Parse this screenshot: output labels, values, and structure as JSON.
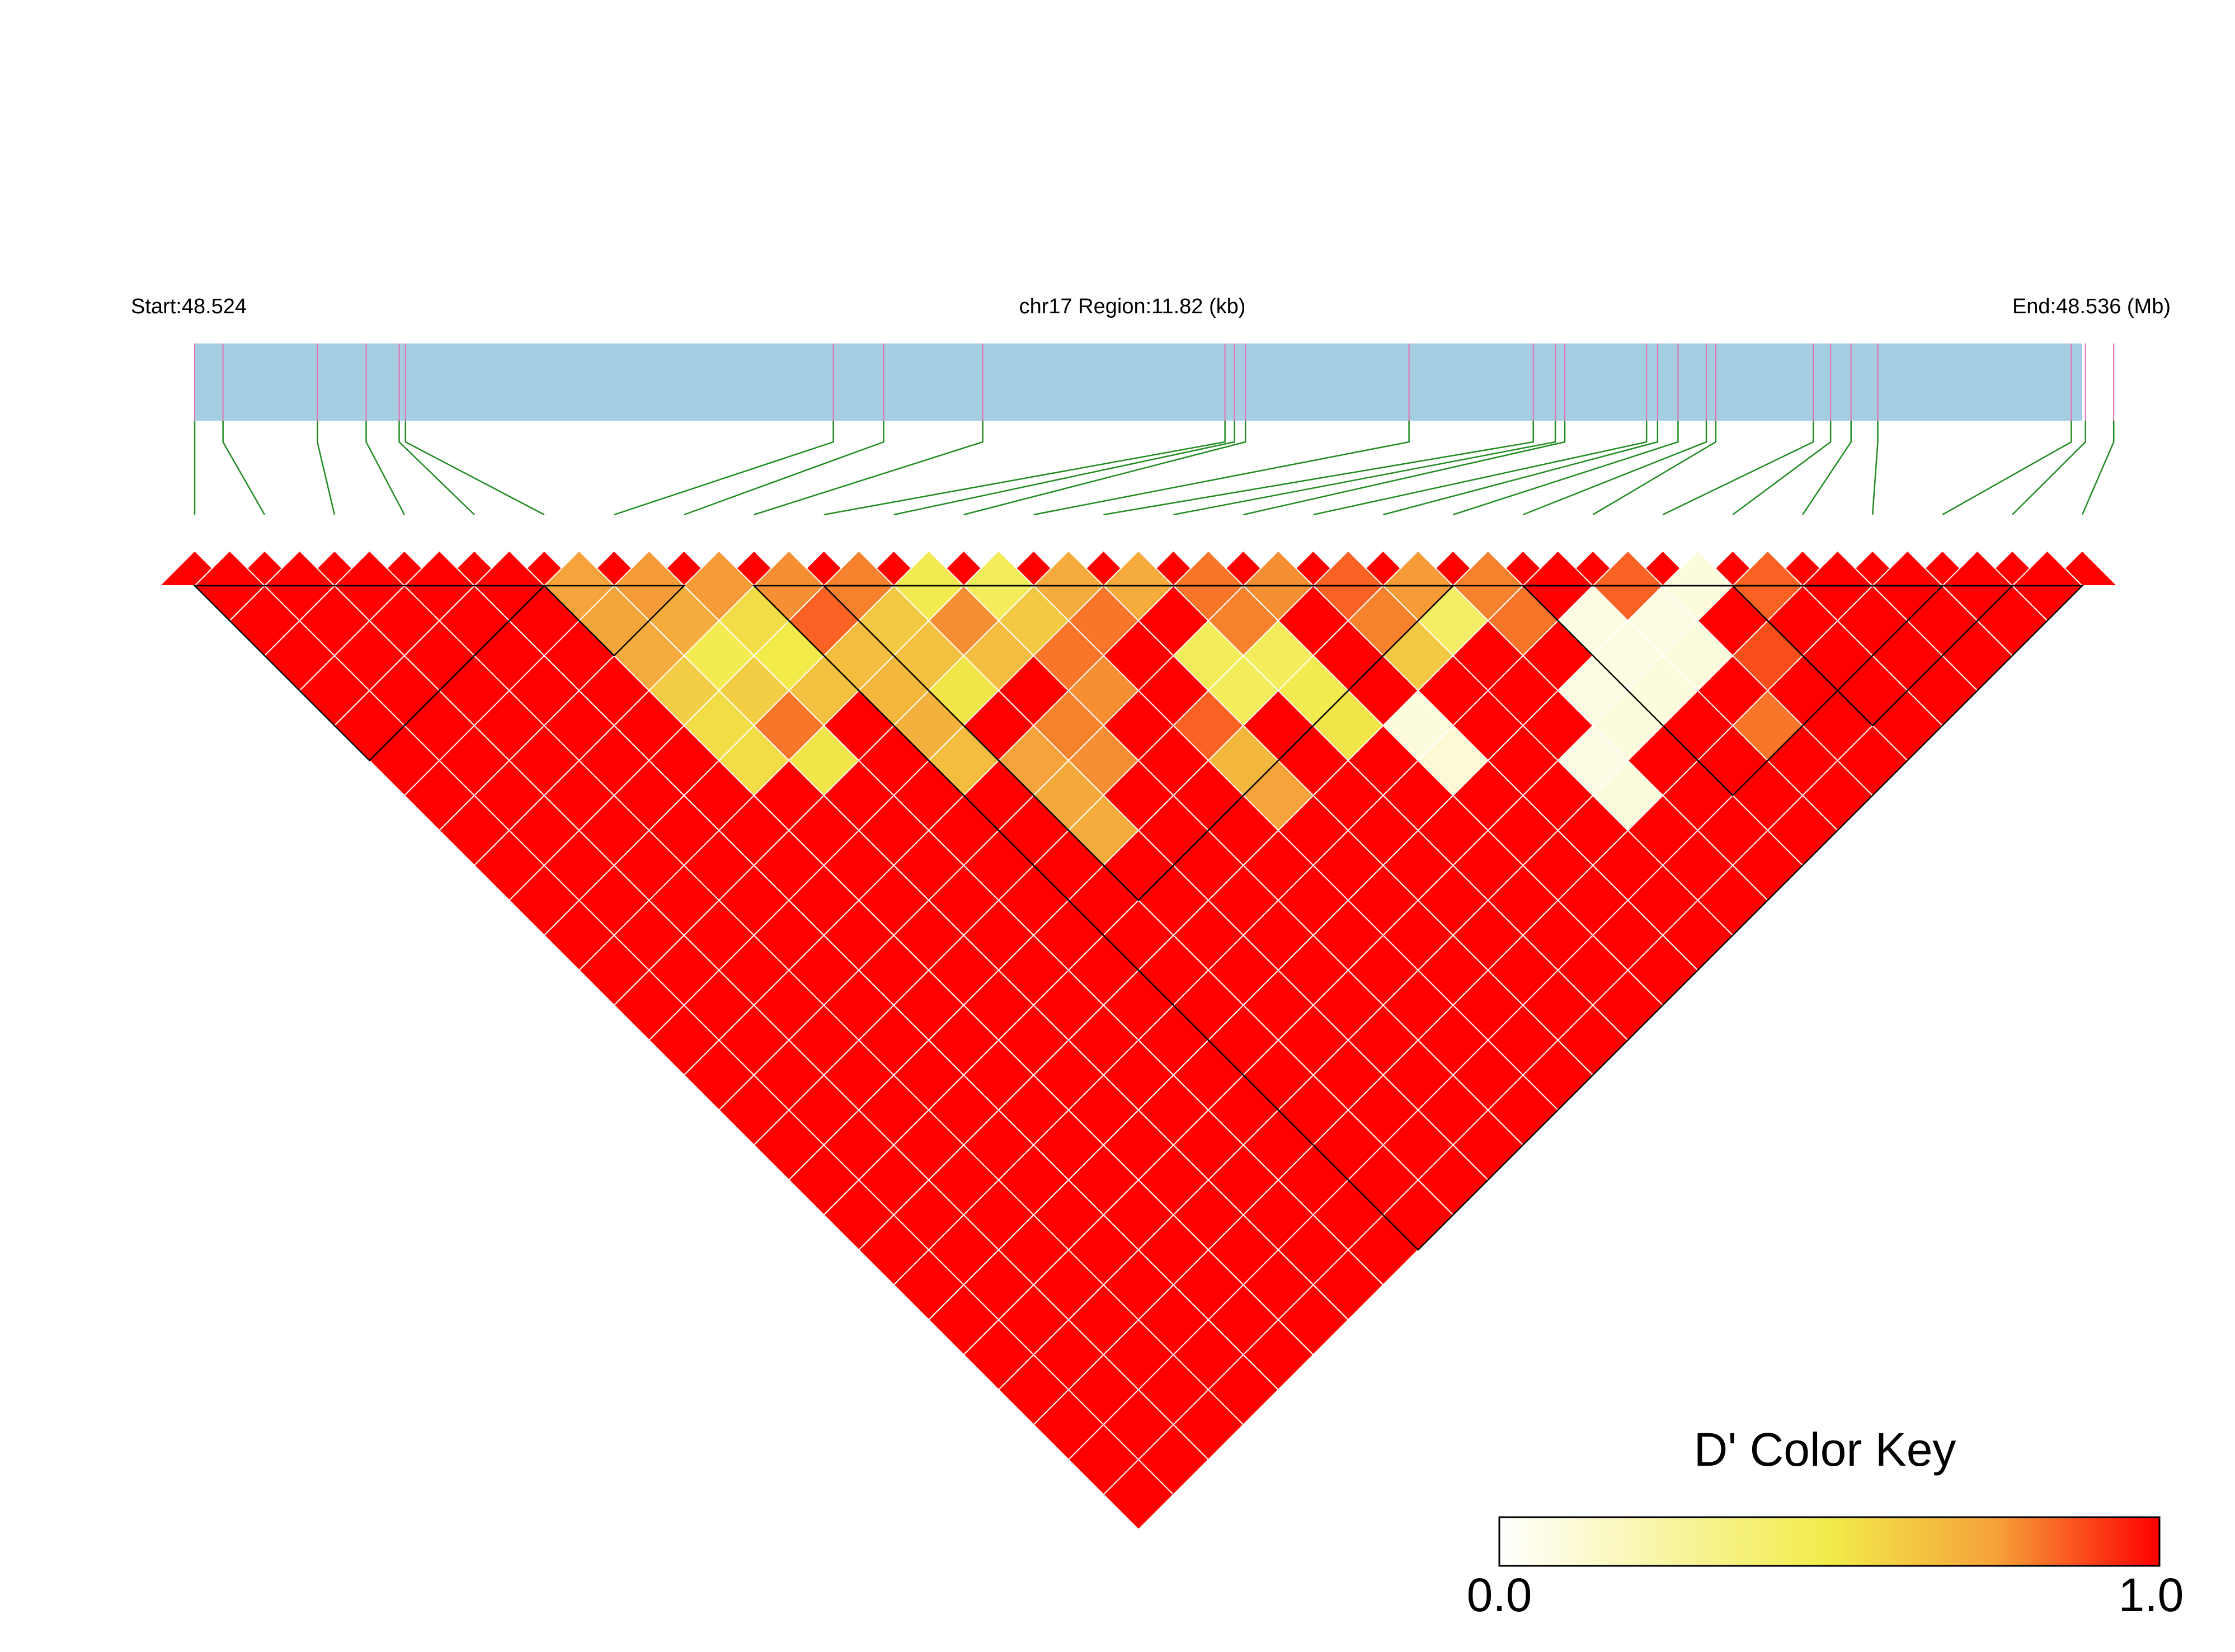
{
  "header": {
    "start_label": "Start:48.524",
    "region_label": "chr17 Region:11.82 (kb)",
    "end_label": "End:48.536 (Mb)"
  },
  "legend": {
    "title": "D' Color Key",
    "min_label": "0.0",
    "max_label": "1.0",
    "gradient_colors": [
      "#ffffff",
      "#f2eb4a",
      "#f5a33a",
      "#ff0000"
    ]
  },
  "colors": {
    "region_bar": "#a6cee3",
    "snp_tick": "#e36fb4",
    "connector": "#228b22",
    "cell_border": "#ffffff",
    "block_outline": "#000000"
  },
  "chart_data": {
    "type": "heatmap",
    "description_scale": "D' (0.0 to 1.0)",
    "region_mb": [
      48.524,
      48.536
    ],
    "n_snps": 28,
    "snp_positions_mb": [
      48.524,
      48.52418,
      48.52478,
      48.52509,
      48.5253,
      48.52534,
      48.52806,
      48.52838,
      48.52901,
      48.53055,
      48.53061,
      48.53068,
      48.53172,
      48.53251,
      48.53265,
      48.53271,
      48.53323,
      48.5333,
      48.53343,
      48.53361,
      48.53367,
      48.53429,
      48.5344,
      48.53453,
      48.5347,
      48.53593,
      48.53602,
      48.5362
    ],
    "default_dprime": 1.0,
    "dprime_exceptions": [
      {
        "i": 5,
        "j": 6,
        "d": 0.75
      },
      {
        "i": 5,
        "j": 7,
        "d": 0.74
      },
      {
        "i": 5,
        "j": 8,
        "d": 0.72
      },
      {
        "i": 5,
        "j": 9,
        "d": 0.6
      },
      {
        "i": 5,
        "j": 10,
        "d": 0.55
      },
      {
        "i": 5,
        "j": 11,
        "d": 0.55
      },
      {
        "i": 6,
        "j": 7,
        "d": 0.76
      },
      {
        "i": 6,
        "j": 8,
        "d": 0.72
      },
      {
        "i": 6,
        "j": 9,
        "d": 0.48
      },
      {
        "i": 6,
        "j": 10,
        "d": 0.6
      },
      {
        "i": 6,
        "j": 11,
        "d": 0.82
      },
      {
        "i": 6,
        "j": 12,
        "d": 0.52
      },
      {
        "i": 7,
        "j": 8,
        "d": 0.76
      },
      {
        "i": 7,
        "j": 9,
        "d": 0.55
      },
      {
        "i": 7,
        "j": 10,
        "d": 0.5
      },
      {
        "i": 7,
        "j": 11,
        "d": 0.65
      },
      {
        "i": 8,
        "j": 9,
        "d": 0.78
      },
      {
        "i": 8,
        "j": 10,
        "d": 0.85
      },
      {
        "i": 8,
        "j": 11,
        "d": 0.66
      },
      {
        "i": 8,
        "j": 12,
        "d": 0.68
      },
      {
        "i": 8,
        "j": 13,
        "d": 0.7
      },
      {
        "i": 8,
        "j": 14,
        "d": 0.66
      },
      {
        "i": 9,
        "j": 10,
        "d": 0.8
      },
      {
        "i": 9,
        "j": 11,
        "d": 0.62
      },
      {
        "i": 9,
        "j": 12,
        "d": 0.65
      },
      {
        "i": 9,
        "j": 13,
        "d": 0.52
      },
      {
        "i": 9,
        "j": 15,
        "d": 0.75
      },
      {
        "i": 9,
        "j": 16,
        "d": 0.73
      },
      {
        "i": 9,
        "j": 17,
        "d": 0.72
      },
      {
        "i": 10,
        "j": 11,
        "d": 0.48
      },
      {
        "i": 10,
        "j": 12,
        "d": 0.78
      },
      {
        "i": 10,
        "j": 13,
        "d": 0.66
      },
      {
        "i": 10,
        "j": 15,
        "d": 0.8
      },
      {
        "i": 10,
        "j": 16,
        "d": 0.78
      },
      {
        "i": 11,
        "j": 12,
        "d": 0.45
      },
      {
        "i": 11,
        "j": 13,
        "d": 0.62
      },
      {
        "i": 11,
        "j": 14,
        "d": 0.82
      },
      {
        "i": 11,
        "j": 15,
        "d": 0.78
      },
      {
        "i": 12,
        "j": 13,
        "d": 0.72
      },
      {
        "i": 12,
        "j": 14,
        "d": 0.82
      },
      {
        "i": 12,
        "j": 17,
        "d": 0.85
      },
      {
        "i": 12,
        "j": 18,
        "d": 0.68
      },
      {
        "i": 12,
        "j": 19,
        "d": 0.75
      },
      {
        "i": 13,
        "j": 14,
        "d": 0.72
      },
      {
        "i": 13,
        "j": 16,
        "d": 0.45
      },
      {
        "i": 13,
        "j": 17,
        "d": 0.45
      },
      {
        "i": 14,
        "j": 15,
        "d": 0.82
      },
      {
        "i": 14,
        "j": 16,
        "d": 0.8
      },
      {
        "i": 14,
        "j": 17,
        "d": 0.45
      },
      {
        "i": 14,
        "j": 18,
        "d": 0.48
      },
      {
        "i": 14,
        "j": 19,
        "d": 0.52
      },
      {
        "i": 15,
        "j": 16,
        "d": 0.78
      },
      {
        "i": 15,
        "j": 20,
        "d": 0.1
      },
      {
        "i": 15,
        "j": 21,
        "d": 0.12
      },
      {
        "i": 16,
        "j": 17,
        "d": 0.85
      },
      {
        "i": 16,
        "j": 18,
        "d": 0.8
      },
      {
        "i": 16,
        "j": 19,
        "d": 0.62
      },
      {
        "i": 17,
        "j": 18,
        "d": 0.76
      },
      {
        "i": 17,
        "j": 19,
        "d": 0.42
      },
      {
        "i": 17,
        "j": 23,
        "d": 0.08
      },
      {
        "i": 17,
        "j": 24,
        "d": 0.1
      },
      {
        "i": 18,
        "j": 19,
        "d": 0.8
      },
      {
        "i": 18,
        "j": 20,
        "d": 0.82
      },
      {
        "i": 18,
        "j": 22,
        "d": 0.08
      },
      {
        "i": 18,
        "j": 23,
        "d": 0.1
      },
      {
        "i": 19,
        "j": 21,
        "d": 0.08
      },
      {
        "i": 19,
        "j": 22,
        "d": 0.08
      },
      {
        "i": 19,
        "j": 23,
        "d": 0.1
      },
      {
        "i": 20,
        "j": 21,
        "d": 0.85
      },
      {
        "i": 20,
        "j": 22,
        "d": 0.08
      },
      {
        "i": 20,
        "j": 23,
        "d": 0.1
      },
      {
        "i": 20,
        "j": 25,
        "d": 0.82
      },
      {
        "i": 21,
        "j": 22,
        "d": 0.1
      },
      {
        "i": 21,
        "j": 24,
        "d": 0.88
      },
      {
        "i": 22,
        "j": 23,
        "d": 0.85
      }
    ],
    "ld_blocks": [
      [
        0,
        5
      ],
      [
        5,
        7
      ],
      [
        8,
        27
      ],
      [
        9,
        18
      ],
      [
        19,
        25
      ],
      [
        22,
        26
      ]
    ],
    "legend_range": [
      0.0,
      1.0
    ]
  }
}
